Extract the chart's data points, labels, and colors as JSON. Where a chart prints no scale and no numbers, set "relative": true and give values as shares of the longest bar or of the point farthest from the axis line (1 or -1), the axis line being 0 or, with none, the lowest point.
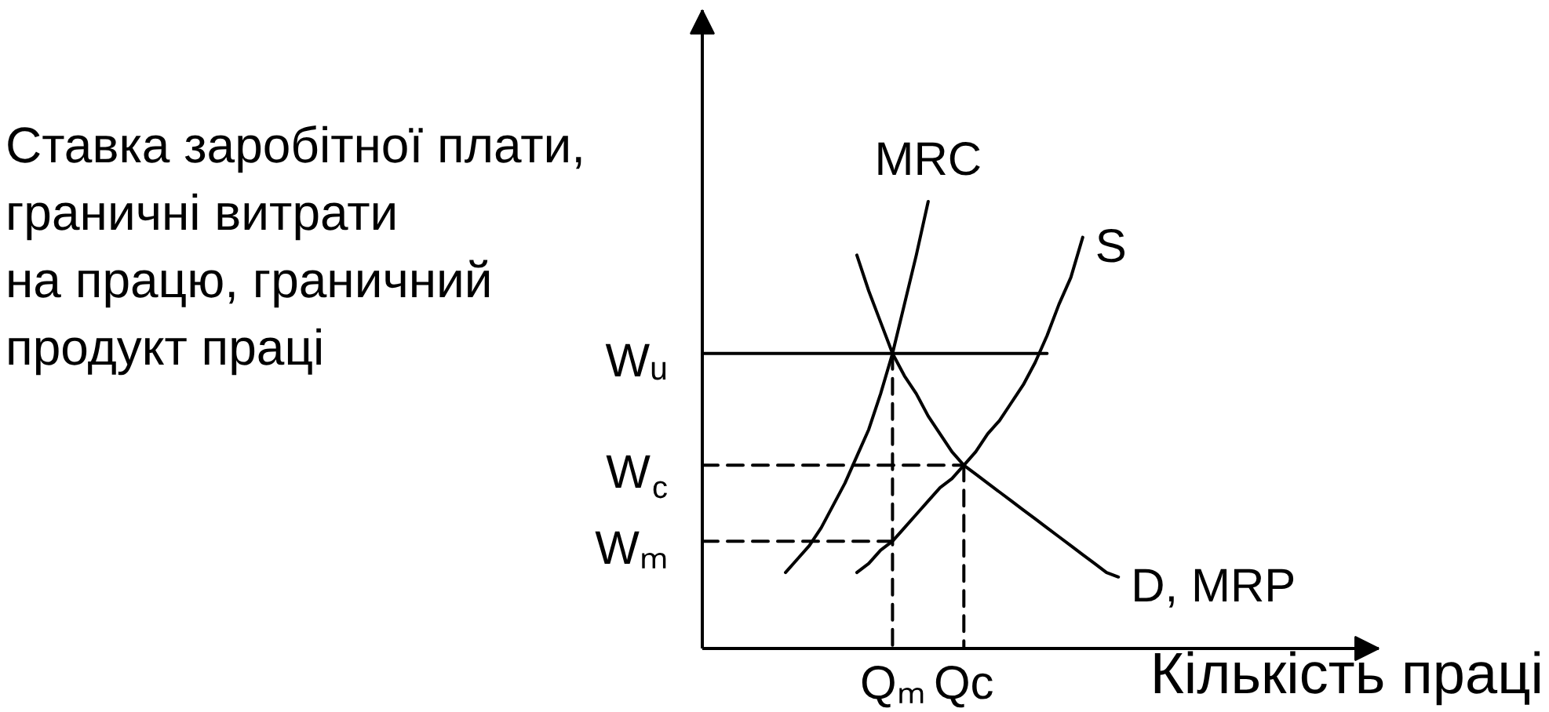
{
  "chart_data": {
    "type": "line",
    "relative": true,
    "line_style": "solid",
    "xlabel": "Кількість праці",
    "ylabel": "Ставка заробітної плати,\nграничні витрати\nна працю, граничний\nпродукт праці",
    "categories": [
      null,
      null,
      null,
      null,
      null,
      null,
      null,
      null,
      null,
      null,
      null,
      null,
      null,
      null,
      null,
      null,
      "Qₘ",
      null,
      null,
      null,
      null,
      null,
      "Qc",
      null,
      null,
      null,
      null,
      null,
      null,
      null,
      null,
      null,
      null,
      null,
      null,
      null
    ],
    "series": [
      {
        "name": "MRC",
        "color": "#000000",
        "values": [
          null,
          null,
          null,
          null,
          null,
          null,
          null,
          0.17,
          0.2,
          0.23,
          0.27,
          0.32,
          0.37,
          0.43,
          0.49,
          0.57,
          0.66,
          0.77,
          0.88,
          1.0,
          null,
          null,
          null,
          null,
          null,
          null,
          null,
          null,
          null,
          null,
          null,
          null,
          null,
          null,
          null,
          null
        ]
      },
      {
        "name": "S",
        "color": "#000000",
        "values": [
          null,
          null,
          null,
          null,
          null,
          null,
          null,
          null,
          null,
          null,
          null,
          null,
          null,
          0.17,
          0.19,
          0.22,
          0.24,
          0.27,
          0.3,
          0.33,
          0.36,
          0.38,
          0.41,
          0.44,
          0.48,
          0.51,
          0.55,
          0.59,
          0.64,
          0.7,
          0.77,
          0.83,
          0.92,
          null,
          null,
          null
        ]
      },
      {
        "name": "D, MRP",
        "color": "#000000",
        "values": [
          null,
          null,
          null,
          null,
          null,
          null,
          null,
          null,
          null,
          null,
          null,
          null,
          null,
          0.88,
          0.8,
          0.73,
          0.66,
          0.61,
          0.57,
          0.52,
          0.48,
          0.44,
          0.41,
          0.39,
          0.37,
          0.35,
          0.33,
          0.31,
          0.29,
          0.27,
          0.25,
          0.23,
          0.21,
          0.19,
          0.17,
          0.16
        ]
      },
      {
        "name": "Wᵤ",
        "color": "#000000",
        "values": [
          0.66,
          0.66,
          0.66,
          0.66,
          0.66,
          0.66,
          0.66,
          0.66,
          0.66,
          0.66,
          0.66,
          0.66,
          0.66,
          0.66,
          0.66,
          0.66,
          0.66,
          0.66,
          0.66,
          0.66,
          0.66,
          0.66,
          0.66,
          0.66,
          0.66,
          0.66,
          0.66,
          0.66,
          0.66,
          0.66,
          null,
          null,
          null,
          null,
          null,
          null
        ]
      },
      {
        "name": "W$_{c}$",
        "color": "#000000",
        "line_style": "dashed",
        "values": [
          0.41,
          0.41,
          0.41,
          0.41,
          0.41,
          0.41,
          0.41,
          0.41,
          0.41,
          0.41,
          0.41,
          0.41,
          0.41,
          0.41,
          0.41,
          0.41,
          0.41,
          0.41,
          0.41,
          0.41,
          0.41,
          0.41,
          0.41,
          null,
          null,
          null,
          null,
          null,
          null,
          null,
          null,
          null,
          null,
          null,
          null,
          null
        ]
      },
      {
        "name": "Wₘ",
        "color": "#000000",
        "line_style": "dashed",
        "values": [
          0.24,
          0.24,
          0.24,
          0.24,
          0.24,
          0.24,
          0.24,
          0.24,
          0.24,
          0.24,
          0.24,
          0.24,
          0.24,
          0.24,
          0.24,
          0.24,
          0.24,
          null,
          null,
          null,
          null,
          null,
          null,
          null,
          null,
          null,
          null,
          null,
          null,
          null,
          null,
          null,
          null,
          null,
          null,
          null
        ]
      },
      {
        "color": "#000000",
        "line_style": "dashed",
        "x": [
          "Qₘ",
          "Qₘ"
        ],
        "values": [
          0.66,
          0
        ]
      },
      {
        "color": "#000000",
        "line_style": "dashed",
        "x": [
          "Qc",
          "Qc"
        ],
        "values": [
          0.41,
          0
        ]
      }
    ]
  }
}
